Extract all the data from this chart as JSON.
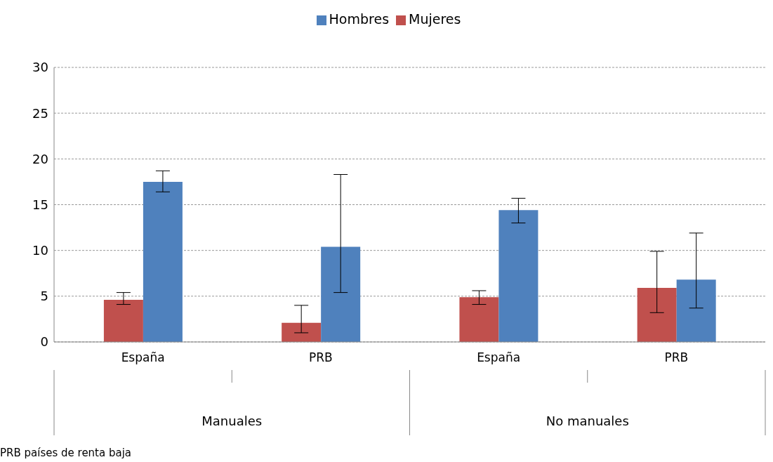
{
  "chart_data": {
    "type": "bar",
    "categories": [
      "España",
      "PRB",
      "España",
      "PRB"
    ],
    "series": [
      {
        "name": "Mujeres",
        "color": "#c0504d",
        "values": [
          4.6,
          2.1,
          4.9,
          5.9
        ],
        "errors": [
          [
            4.1,
            5.4
          ],
          [
            1.0,
            4.0
          ],
          [
            4.1,
            5.6
          ],
          [
            3.2,
            9.9
          ]
        ]
      },
      {
        "name": "Hombres",
        "color": "#4f81bd",
        "values": [
          17.5,
          10.4,
          14.4,
          6.8
        ],
        "errors": [
          [
            16.4,
            18.7
          ],
          [
            5.4,
            18.3
          ],
          [
            13.0,
            15.7
          ],
          [
            3.7,
            11.9
          ]
        ]
      }
    ],
    "ylim": [
      0,
      30
    ],
    "yticks": [
      0,
      5,
      10,
      15,
      20,
      25,
      30
    ],
    "grid": "y",
    "legend": "top",
    "annotations": [
      "Manuales",
      "No manuales",
      "PRB países de renta baja"
    ]
  }
}
